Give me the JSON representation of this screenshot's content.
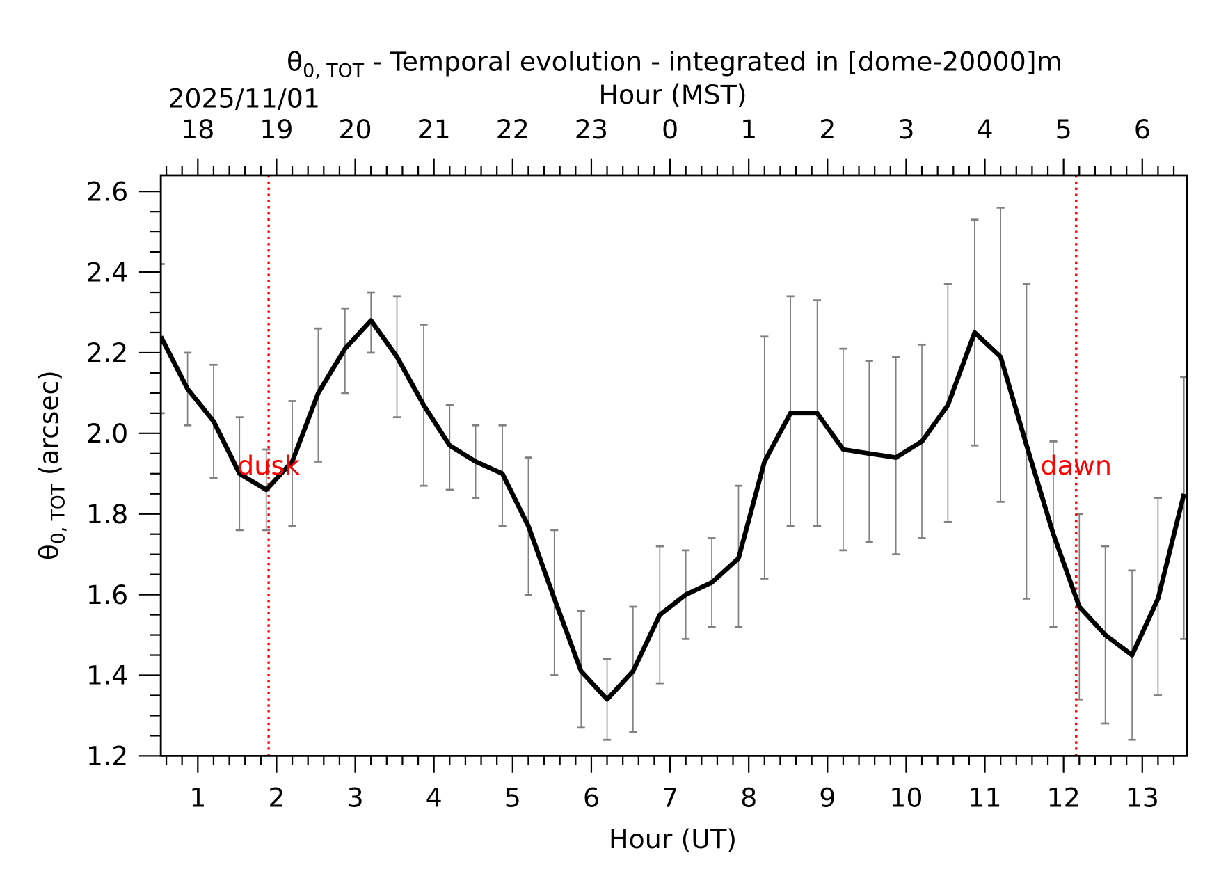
{
  "chart_data": {
    "type": "line",
    "title": "θ0,TOT - Temporal evolution - integrated in [dome-20000]m",
    "title_parts": {
      "symbol": "θ",
      "subscript": "0, TOT",
      "rest": " - Temporal evolution - integrated in [dome-20000]m"
    },
    "date_label": "2025/11/01",
    "xlabel": "Hour (UT)",
    "x2label": "Hour (MST)",
    "ylabel": "θ0,TOT (arcsec)",
    "ylabel_parts": {
      "symbol": "θ",
      "subscript": "0, TOT",
      "rest": " (arcsec)"
    },
    "xlim": [
      0.53,
      13.57
    ],
    "ylim": [
      1.2,
      2.64
    ],
    "xticks": [
      1,
      2,
      3,
      4,
      5,
      6,
      7,
      8,
      9,
      10,
      11,
      12,
      13
    ],
    "xtick_labels": [
      "1",
      "2",
      "3",
      "4",
      "5",
      "6",
      "7",
      "8",
      "9",
      "10",
      "11",
      "12",
      "13"
    ],
    "x2tick_labels": [
      "18",
      "19",
      "20",
      "21",
      "22",
      "23",
      "0",
      "1",
      "2",
      "3",
      "4",
      "5",
      "6"
    ],
    "yticks": [
      1.2,
      1.4,
      1.6,
      1.8,
      2.0,
      2.2,
      2.4,
      2.6
    ],
    "ytick_labels": [
      "1.2",
      "1.4",
      "1.6",
      "1.8",
      "2.0",
      "2.2",
      "2.4",
      "2.6"
    ],
    "grid": false,
    "line_color": "#000000",
    "errorbar_color": "#808080",
    "marker_color": "#ff0000",
    "x": [
      0.53,
      0.87,
      1.2,
      1.53,
      1.87,
      2.2,
      2.53,
      2.87,
      3.2,
      3.53,
      3.87,
      4.2,
      4.53,
      4.87,
      5.2,
      5.53,
      5.87,
      6.2,
      6.53,
      6.87,
      7.2,
      7.53,
      7.87,
      8.2,
      8.53,
      8.87,
      9.2,
      9.53,
      9.87,
      10.2,
      10.53,
      10.87,
      11.2,
      11.53,
      11.87,
      12.2,
      12.53,
      12.87,
      13.2,
      13.53
    ],
    "series": [
      {
        "values": [
          2.24,
          2.11,
          2.03,
          1.9,
          1.86,
          1.93,
          2.1,
          2.21,
          2.28,
          2.19,
          2.07,
          1.97,
          1.93,
          1.9,
          1.77,
          1.59,
          1.41,
          1.34,
          1.41,
          1.55,
          1.6,
          1.63,
          1.69,
          1.93,
          2.05,
          2.05,
          1.96,
          1.95,
          1.94,
          1.98,
          2.07,
          2.25,
          2.19,
          1.97,
          1.75,
          1.57,
          1.5,
          1.45,
          1.59,
          1.85
        ],
        "err_low": [
          2.05,
          2.02,
          1.89,
          1.76,
          1.76,
          1.77,
          1.93,
          2.1,
          2.2,
          2.04,
          1.87,
          1.86,
          1.84,
          1.77,
          1.6,
          1.4,
          1.27,
          1.24,
          1.26,
          1.38,
          1.49,
          1.52,
          1.52,
          1.64,
          1.77,
          1.77,
          1.71,
          1.73,
          1.7,
          1.74,
          1.78,
          1.97,
          1.83,
          1.59,
          1.52,
          1.34,
          1.28,
          1.24,
          1.35,
          1.49
        ],
        "err_high": [
          2.42,
          2.2,
          2.17,
          2.04,
          1.96,
          2.08,
          2.26,
          2.31,
          2.35,
          2.34,
          2.27,
          2.07,
          2.02,
          2.02,
          1.94,
          1.76,
          1.56,
          1.44,
          1.57,
          1.72,
          1.71,
          1.74,
          1.87,
          2.24,
          2.34,
          2.33,
          2.21,
          2.18,
          2.19,
          2.22,
          2.37,
          2.53,
          2.56,
          2.37,
          1.98,
          1.8,
          1.72,
          1.66,
          1.84,
          2.14
        ]
      }
    ],
    "annotations": [
      {
        "text": "dusk",
        "x": 1.9,
        "color": "#ff0000"
      },
      {
        "text": "dawn",
        "x": 12.16,
        "color": "#ff0000"
      }
    ]
  }
}
